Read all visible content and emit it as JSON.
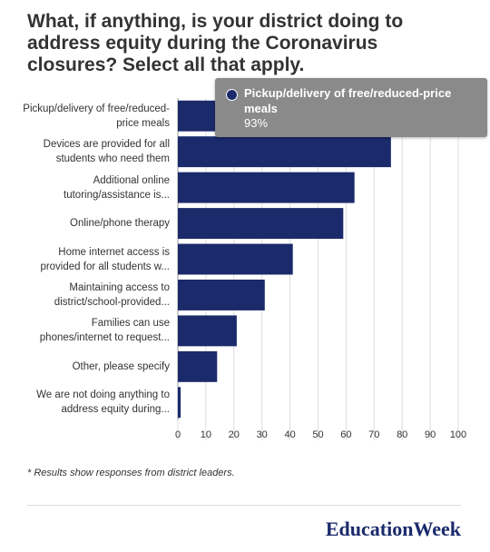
{
  "chart_data": {
    "type": "bar",
    "orientation": "horizontal",
    "title": "What, if anything, is your district doing to address equity during the Coronavirus closures? Select all that apply.",
    "categories": [
      "Pickup/delivery of free/reduced-price meals",
      "Devices are provided for all students who need them",
      "Additional online tutoring/assistance is...",
      "Online/phone therapy",
      "Home internet access is provided for all students w...",
      "Maintaining access to district/school-provided...",
      "Families can use phones/internet to request...",
      "Other, please specify",
      "We are not doing anything to address equity during..."
    ],
    "values": [
      93,
      76,
      63,
      59,
      41,
      31,
      21,
      14,
      1
    ],
    "value_labels": [
      "93%",
      null,
      null,
      null,
      null,
      null,
      null,
      null,
      null
    ],
    "color": "#1b2a6b",
    "xlim": [
      0,
      100
    ],
    "xticks": [
      0,
      10,
      20,
      30,
      40,
      50,
      60,
      70,
      80,
      90,
      100
    ],
    "grid": true,
    "footnote": "* Results show responses from district leaders.",
    "brand": "EducationWeek"
  }
}
